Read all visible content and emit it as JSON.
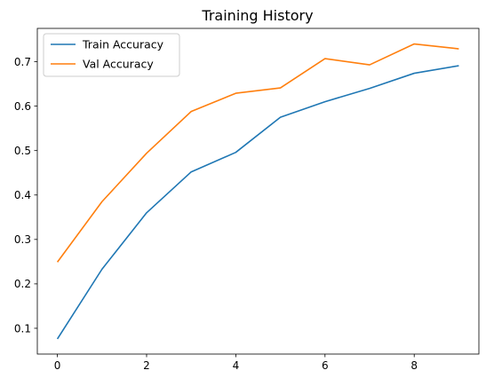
{
  "chart_data": {
    "type": "line",
    "title": "Training History",
    "xlabel": "",
    "ylabel": "",
    "xlim": [
      -0.45,
      9.45
    ],
    "ylim": [
      0.042,
      0.775
    ],
    "xticks": [
      0,
      2,
      4,
      6,
      8
    ],
    "yticks": [
      0.1,
      0.2,
      0.3,
      0.4,
      0.5,
      0.6,
      0.7
    ],
    "grid": false,
    "legend_position": "top-left",
    "x": [
      0,
      1,
      2,
      3,
      4,
      5,
      6,
      7,
      8,
      9
    ],
    "series": [
      {
        "name": "Train Accuracy",
        "color": "#1f77b4",
        "values": [
          0.076,
          0.233,
          0.36,
          0.452,
          0.496,
          0.575,
          0.61,
          0.64,
          0.674,
          0.691
        ]
      },
      {
        "name": "Val Accuracy",
        "color": "#ff7f0e",
        "values": [
          0.249,
          0.385,
          0.494,
          0.588,
          0.629,
          0.641,
          0.707,
          0.693,
          0.74,
          0.729
        ]
      }
    ]
  }
}
